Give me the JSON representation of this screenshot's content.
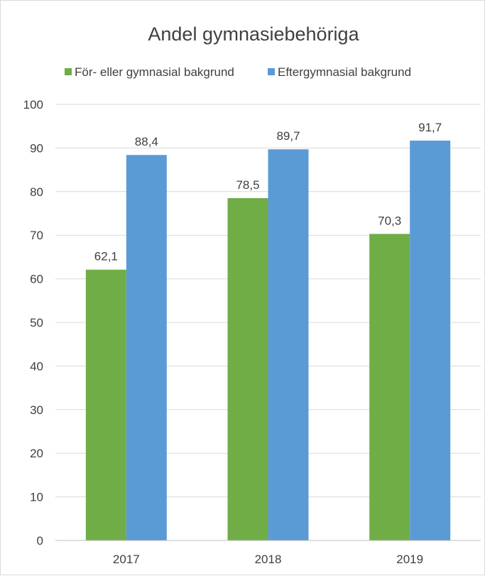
{
  "chart_data": {
    "type": "bar",
    "title": "Andel gymnasiebehöriga",
    "categories": [
      "2017",
      "2018",
      "2019"
    ],
    "series": [
      {
        "name": "För- eller gymnasial bakgrund",
        "color": "#70ad47",
        "values": [
          62.1,
          78.5,
          70.3
        ],
        "labels": [
          "62,1",
          "78,5",
          "70,3"
        ]
      },
      {
        "name": "Eftergymnasial bakgrund",
        "color": "#5b9bd5",
        "values": [
          88.4,
          89.7,
          91.7
        ],
        "labels": [
          "88,4",
          "89,7",
          "91,7"
        ]
      }
    ],
    "ylim": [
      0,
      100
    ],
    "yticks": [
      0,
      10,
      20,
      30,
      40,
      50,
      60,
      70,
      80,
      90,
      100
    ],
    "xlabel": "",
    "ylabel": "",
    "grid": true,
    "legend_position": "top"
  }
}
